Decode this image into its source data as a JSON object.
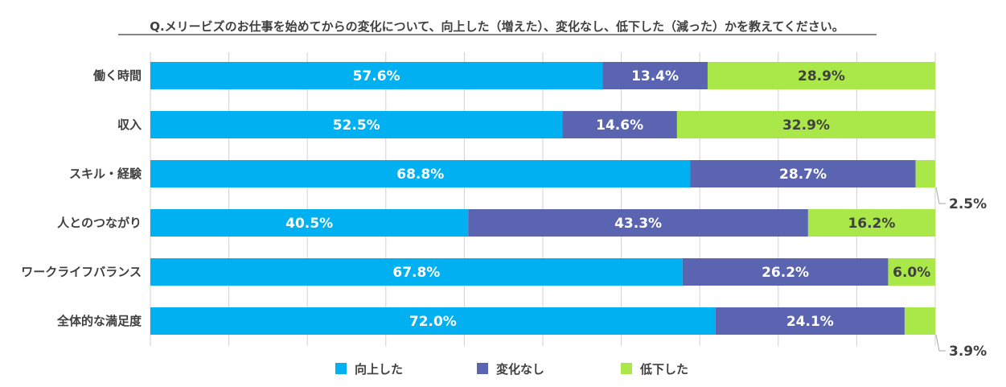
{
  "chart_data": {
    "type": "bar",
    "orientation": "horizontal",
    "stacked": true,
    "title": "Q.メリービズのお仕事を始めてからの変化について、向上した（増えた）、変化なし、低下した（減った）かを教えてください。",
    "categories": [
      "働く時間",
      "収入",
      "スキル・経験",
      "人とのつながり",
      "ワークライフバランス",
      "全体的な満足度"
    ],
    "series": [
      {
        "name": "向上した",
        "color": "#00b0f0",
        "label_color": "#ffffff",
        "values": [
          57.6,
          52.5,
          68.8,
          40.5,
          67.8,
          72.0
        ],
        "labels": [
          "57.6%",
          "52.5%",
          "68.8%",
          "40.5%",
          "67.8%",
          "72.0%"
        ]
      },
      {
        "name": "変化なし",
        "color": "#5b64b1",
        "label_color": "#ffffff",
        "values": [
          13.4,
          14.6,
          28.7,
          43.3,
          26.2,
          24.1
        ],
        "labels": [
          "13.4%",
          "14.6%",
          "28.7%",
          "43.3%",
          "26.2%",
          "24.1%"
        ]
      },
      {
        "name": "低下した",
        "color": "#a9e848",
        "label_color": "#404040",
        "values": [
          28.9,
          32.9,
          2.5,
          16.2,
          6.0,
          3.9
        ],
        "labels": [
          "28.9%",
          "32.9%",
          "2.5%",
          "16.2%",
          "6.0%",
          "3.9%"
        ]
      }
    ],
    "xlim": [
      0,
      100
    ],
    "grid": true,
    "legend": "bottom-center"
  }
}
